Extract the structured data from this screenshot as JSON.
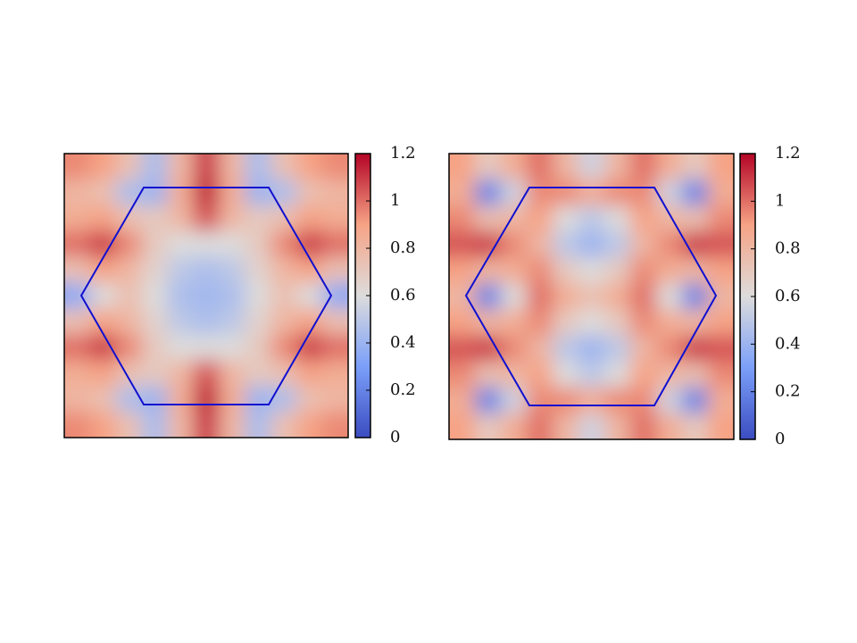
{
  "chart_data": [
    {
      "type": "heatmap",
      "colormap": [
        "#3b4cc0",
        "#7b9ff9",
        "#dddcdc",
        "#f6a385",
        "#b40426"
      ],
      "zlim": [
        0,
        1.2
      ],
      "zticks": [
        0,
        0.2,
        0.4,
        0.6,
        0.8,
        1,
        1.2
      ],
      "z": [
        [
          0.95,
          0.9,
          0.75,
          0.45,
          0.8,
          1.1,
          0.8,
          0.45,
          0.75,
          0.9,
          0.95
        ],
        [
          0.8,
          0.75,
          0.45,
          0.4,
          0.85,
          1.15,
          0.85,
          0.4,
          0.45,
          0.75,
          0.8
        ],
        [
          0.85,
          0.9,
          0.75,
          0.7,
          0.8,
          1.05,
          0.8,
          0.7,
          0.75,
          0.9,
          0.85
        ],
        [
          1,
          1.1,
          0.95,
          0.7,
          0.6,
          0.6,
          0.6,
          0.7,
          0.95,
          1.1,
          1
        ],
        [
          0.75,
          0.9,
          0.8,
          0.65,
          0.5,
          0.45,
          0.5,
          0.65,
          0.8,
          0.9,
          0.75
        ],
        [
          0.35,
          0.6,
          0.75,
          0.6,
          0.45,
          0.42,
          0.45,
          0.6,
          0.75,
          0.6,
          0.35
        ],
        [
          0.75,
          0.9,
          0.8,
          0.65,
          0.5,
          0.45,
          0.5,
          0.65,
          0.8,
          0.9,
          0.75
        ],
        [
          1,
          1.1,
          0.95,
          0.7,
          0.6,
          0.6,
          0.6,
          0.7,
          0.95,
          1.1,
          1
        ],
        [
          0.85,
          0.9,
          0.75,
          0.7,
          0.8,
          1.05,
          0.8,
          0.7,
          0.75,
          0.9,
          0.85
        ],
        [
          0.8,
          0.75,
          0.45,
          0.4,
          0.85,
          1.15,
          0.85,
          0.4,
          0.45,
          0.75,
          0.8
        ],
        [
          0.95,
          0.9,
          0.75,
          0.45,
          0.8,
          1.1,
          0.8,
          0.45,
          0.75,
          0.9,
          0.95
        ]
      ]
    },
    {
      "type": "heatmap",
      "colormap": [
        "#3b4cc0",
        "#7b9ff9",
        "#dddcdc",
        "#f6a385",
        "#b40426"
      ],
      "zlim": [
        0,
        1.2
      ],
      "zticks": [
        0,
        0.2,
        0.4,
        0.6,
        0.8,
        1,
        1.2
      ],
      "z": [
        [
          0.9,
          0.7,
          0.85,
          1,
          0.8,
          0.55,
          0.8,
          1,
          0.85,
          0.7,
          0.9
        ],
        [
          0.85,
          0.2,
          0.55,
          0.95,
          0.95,
          0.85,
          0.95,
          0.95,
          0.55,
          0.2,
          0.85
        ],
        [
          0.95,
          0.75,
          0.8,
          0.9,
          0.6,
          0.5,
          0.6,
          0.9,
          0.8,
          0.75,
          0.95
        ],
        [
          1.05,
          1.1,
          0.95,
          0.8,
          0.5,
          0.4,
          0.5,
          0.8,
          0.95,
          1.1,
          1.05
        ],
        [
          0.9,
          0.8,
          0.85,
          0.95,
          0.7,
          0.6,
          0.7,
          0.95,
          0.85,
          0.8,
          0.9
        ],
        [
          0.8,
          0.2,
          0.6,
          1,
          0.85,
          0.75,
          0.85,
          1,
          0.6,
          0.2,
          0.8
        ],
        [
          0.9,
          0.8,
          0.85,
          0.95,
          0.7,
          0.6,
          0.7,
          0.95,
          0.85,
          0.8,
          0.9
        ],
        [
          1.05,
          1.1,
          0.95,
          0.8,
          0.5,
          0.4,
          0.5,
          0.8,
          0.95,
          1.1,
          1.05
        ],
        [
          0.95,
          0.75,
          0.8,
          0.9,
          0.6,
          0.5,
          0.6,
          0.9,
          0.8,
          0.75,
          0.95
        ],
        [
          0.85,
          0.2,
          0.55,
          0.95,
          0.95,
          0.85,
          0.95,
          0.95,
          0.55,
          0.2,
          0.85
        ],
        [
          0.9,
          0.7,
          0.85,
          1,
          0.8,
          0.55,
          0.8,
          1,
          0.85,
          0.7,
          0.9
        ]
      ]
    }
  ]
}
